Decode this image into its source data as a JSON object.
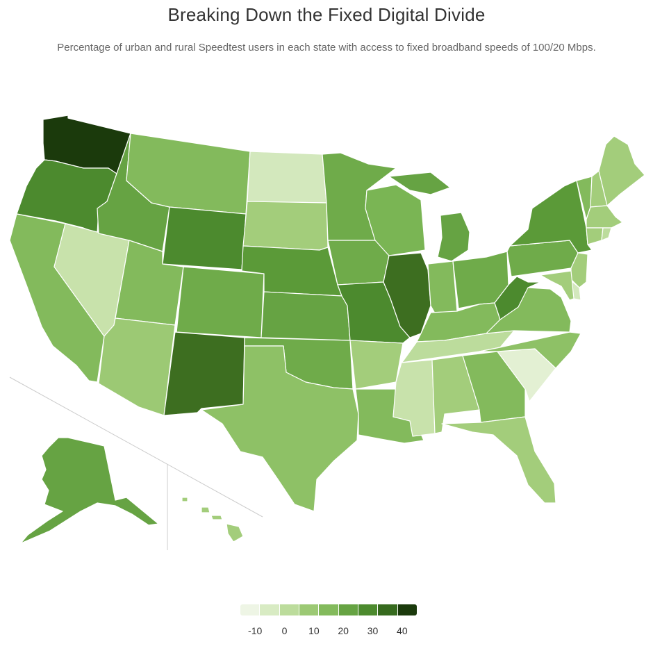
{
  "title": "Breaking Down the Fixed Digital Divide",
  "subtitle": "Percentage of urban and rural Speedtest users in each state with access to fixed broadband speeds of 100/20 Mbps.",
  "legend": {
    "colors": [
      "#eef5e5",
      "#d8ebc3",
      "#bcdc9c",
      "#9cc974",
      "#83ba5c",
      "#66a343",
      "#4c8a2e",
      "#366a1e",
      "#1b3a0c"
    ],
    "ticks": [
      "-10",
      "0",
      "10",
      "20",
      "30",
      "40"
    ],
    "tick_values": [
      -10,
      0,
      10,
      20,
      30,
      40
    ],
    "min": -15,
    "max": 45
  },
  "states": [
    {
      "name": "Washington",
      "color": "#1b3a0c"
    },
    {
      "name": "Oregon",
      "color": "#4c8a2e"
    },
    {
      "name": "California",
      "color": "#83ba5c"
    },
    {
      "name": "Nevada",
      "color": "#c8e2ab"
    },
    {
      "name": "Idaho",
      "color": "#66a343"
    },
    {
      "name": "Montana",
      "color": "#83ba5c"
    },
    {
      "name": "Wyoming",
      "color": "#4c8a2e"
    },
    {
      "name": "Utah",
      "color": "#83ba5c"
    },
    {
      "name": "Arizona",
      "color": "#9cc974"
    },
    {
      "name": "Colorado",
      "color": "#6fab4a"
    },
    {
      "name": "New Mexico",
      "color": "#3d6e20"
    },
    {
      "name": "North Dakota",
      "color": "#d3e8bd"
    },
    {
      "name": "South Dakota",
      "color": "#a3cd7b"
    },
    {
      "name": "Nebraska",
      "color": "#5b9a38"
    },
    {
      "name": "Kansas",
      "color": "#66a343"
    },
    {
      "name": "Oklahoma",
      "color": "#6fab4a"
    },
    {
      "name": "Texas",
      "color": "#8ec166"
    },
    {
      "name": "Minnesota",
      "color": "#6fab4a"
    },
    {
      "name": "Iowa",
      "color": "#6fab4a"
    },
    {
      "name": "Missouri",
      "color": "#4c8a2e"
    },
    {
      "name": "Arkansas",
      "color": "#a3cd7b"
    },
    {
      "name": "Louisiana",
      "color": "#83ba5c"
    },
    {
      "name": "Wisconsin",
      "color": "#7ab554"
    },
    {
      "name": "Illinois",
      "color": "#3d6e20"
    },
    {
      "name": "Michigan",
      "color": "#66a343"
    },
    {
      "name": "Indiana",
      "color": "#83ba5c"
    },
    {
      "name": "Ohio",
      "color": "#6fab4a"
    },
    {
      "name": "Kentucky",
      "color": "#83ba5c"
    },
    {
      "name": "Tennessee",
      "color": "#bcdc9c"
    },
    {
      "name": "Mississippi",
      "color": "#c8e2ab"
    },
    {
      "name": "Alabama",
      "color": "#a3cd7b"
    },
    {
      "name": "Georgia",
      "color": "#83ba5c"
    },
    {
      "name": "Florida",
      "color": "#a3cd7b"
    },
    {
      "name": "South Carolina",
      "color": "#e3f0d3"
    },
    {
      "name": "North Carolina",
      "color": "#8ec166"
    },
    {
      "name": "Virginia",
      "color": "#83ba5c"
    },
    {
      "name": "West Virginia",
      "color": "#4c8a2e"
    },
    {
      "name": "Pennsylvania",
      "color": "#6fab4a"
    },
    {
      "name": "New York",
      "color": "#5b9a38"
    },
    {
      "name": "Vermont",
      "color": "#83ba5c"
    },
    {
      "name": "New Hampshire",
      "color": "#a3cd7b"
    },
    {
      "name": "Maine",
      "color": "#a3cd7b"
    },
    {
      "name": "Massachusetts",
      "color": "#a3cd7b"
    },
    {
      "name": "Connecticut",
      "color": "#a3cd7b"
    },
    {
      "name": "Rhode Island",
      "color": "#bcdc9c"
    },
    {
      "name": "New Jersey",
      "color": "#a3cd7b"
    },
    {
      "name": "Delaware",
      "color": "#d3e8bd"
    },
    {
      "name": "Maryland",
      "color": "#a3cd7b"
    },
    {
      "name": "Alaska",
      "color": "#66a343"
    },
    {
      "name": "Hawaii",
      "color": "#a3cd7b"
    }
  ]
}
